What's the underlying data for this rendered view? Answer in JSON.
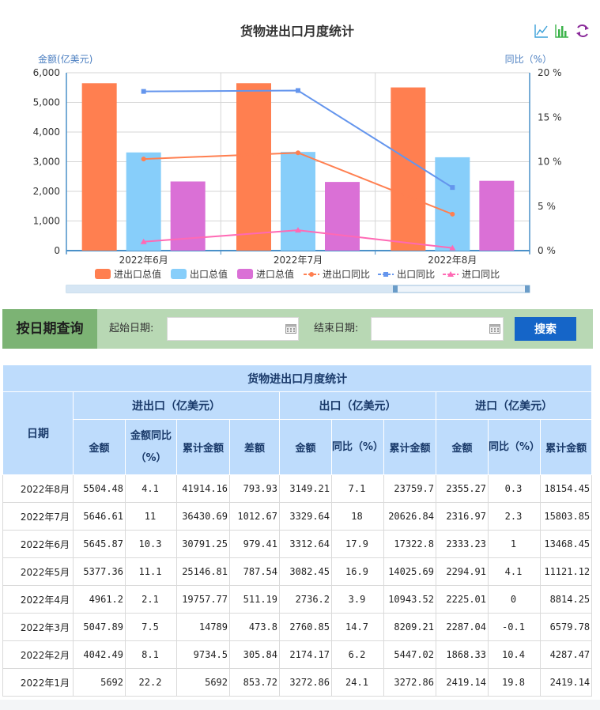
{
  "chart_data": {
    "type": "bar",
    "title": "货物进出口月度统计",
    "left_axis_label": "金额(亿美元)",
    "right_axis_label": "同比（%）",
    "left_ylim": [
      0,
      6000
    ],
    "left_ticks": [
      "0",
      "1,000",
      "2,000",
      "3,000",
      "4,000",
      "5,000",
      "6,000"
    ],
    "right_ylim": [
      0,
      20
    ],
    "right_ticks": [
      "0 %",
      "5 %",
      "10 %",
      "15 %",
      "20 %"
    ],
    "categories": [
      "2022年6月",
      "2022年7月",
      "2022年8月"
    ],
    "bar_series": [
      {
        "name": "进出口总值",
        "color": "#ff7f50",
        "values": [
          5645.87,
          5646.61,
          5504.48
        ]
      },
      {
        "name": "出口总值",
        "color": "#87cefa",
        "values": [
          3312.64,
          3329.64,
          3149.21
        ]
      },
      {
        "name": "进口总值",
        "color": "#da70d6",
        "values": [
          2333.23,
          2316.97,
          2355.27
        ]
      }
    ],
    "line_series": [
      {
        "name": "进出口同比",
        "color": "#ff7f50",
        "marker": "circle",
        "values": [
          10.3,
          11,
          4.1
        ]
      },
      {
        "name": "出口同比",
        "color": "#6495ed",
        "marker": "square",
        "values": [
          17.9,
          18,
          7.1
        ]
      },
      {
        "name": "进口同比",
        "color": "#ff69b4",
        "marker": "triangle",
        "values": [
          1,
          2.3,
          0.3
        ]
      }
    ],
    "grid": true,
    "legend_position": "bottom"
  },
  "toolbar": {
    "icons": [
      "line-chart-icon",
      "bar-chart-icon",
      "refresh-icon"
    ]
  },
  "search": {
    "title": "按日期查询",
    "start_label": "起始日期:",
    "end_label": "结束日期:",
    "start_value": "",
    "end_value": "",
    "button_label": "搜索"
  },
  "table": {
    "caption": "货物进出口月度统计",
    "date_header": "日期",
    "group_headers": [
      "进出口（亿美元）",
      "出口（亿美元）",
      "进口（亿美元）"
    ],
    "sub_headers": {
      "total": [
        "金额",
        "金额同比（%）",
        "累计金额",
        "差额"
      ],
      "export": [
        "金额",
        "同比（%）",
        "累计金额"
      ],
      "import": [
        "金额",
        "同比（%）",
        "累计金额"
      ]
    },
    "rows": [
      [
        "2022年8月",
        "5504.48",
        "4.1",
        "41914.16",
        "793.93",
        "3149.21",
        "7.1",
        "23759.7",
        "2355.27",
        "0.3",
        "18154.45"
      ],
      [
        "2022年7月",
        "5646.61",
        "11",
        "36430.69",
        "1012.67",
        "3329.64",
        "18",
        "20626.84",
        "2316.97",
        "2.3",
        "15803.85"
      ],
      [
        "2022年6月",
        "5645.87",
        "10.3",
        "30791.25",
        "979.41",
        "3312.64",
        "17.9",
        "17322.8",
        "2333.23",
        "1",
        "13468.45"
      ],
      [
        "2022年5月",
        "5377.36",
        "11.1",
        "25146.81",
        "787.54",
        "3082.45",
        "16.9",
        "14025.69",
        "2294.91",
        "4.1",
        "11121.12"
      ],
      [
        "2022年4月",
        "4961.2",
        "2.1",
        "19757.77",
        "511.19",
        "2736.2",
        "3.9",
        "10943.52",
        "2225.01",
        "0",
        "8814.25"
      ],
      [
        "2022年3月",
        "5047.89",
        "7.5",
        "14789",
        "473.8",
        "2760.85",
        "14.7",
        "8209.21",
        "2287.04",
        "-0.1",
        "6579.78"
      ],
      [
        "2022年2月",
        "4042.49",
        "8.1",
        "9734.5",
        "305.84",
        "2174.17",
        "6.2",
        "5447.02",
        "1868.33",
        "10.4",
        "4287.47"
      ],
      [
        "2022年1月",
        "5692",
        "22.2",
        "5692",
        "853.72",
        "3272.86",
        "24.1",
        "3272.86",
        "2419.14",
        "19.8",
        "2419.14"
      ]
    ]
  }
}
